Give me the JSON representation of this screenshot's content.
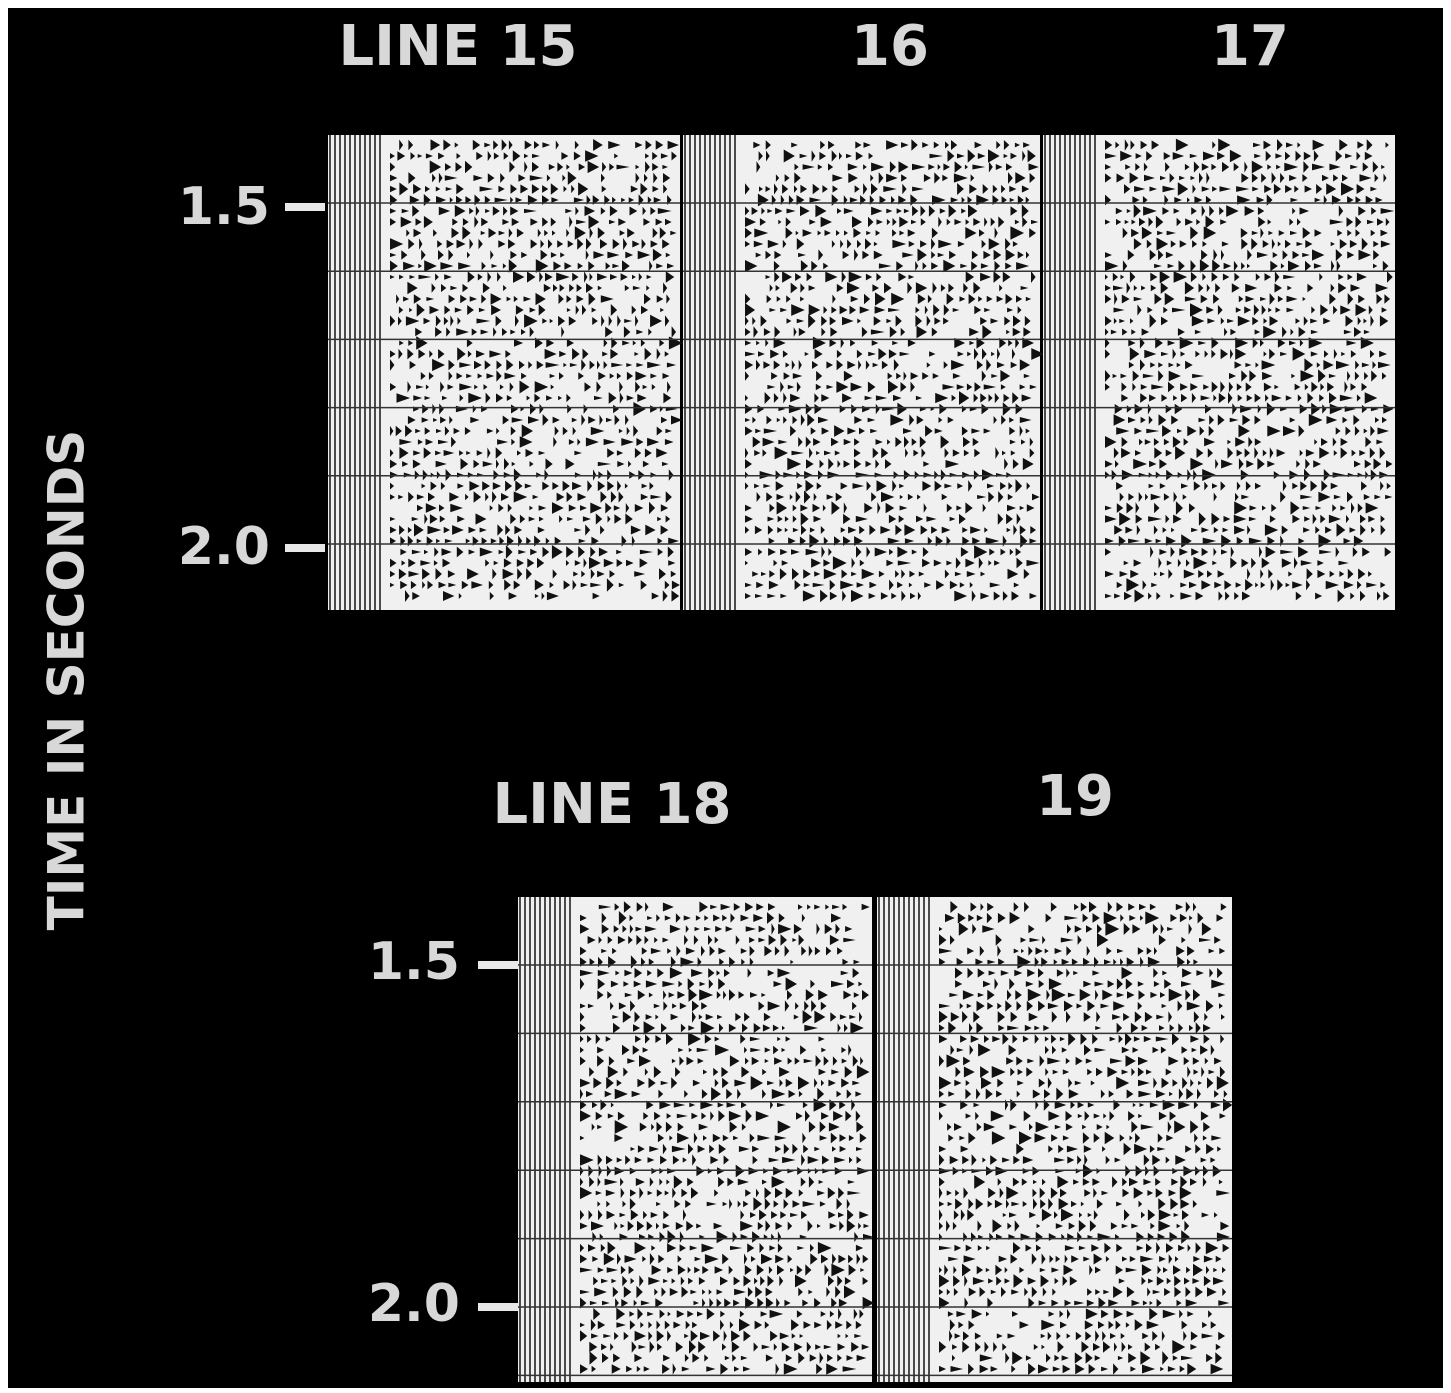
{
  "figure": {
    "axis_label": "TIME IN SECONDS",
    "top": {
      "labels": [
        "LINE 15",
        "16",
        "17"
      ],
      "ticks": [
        "1.5",
        "2.0"
      ]
    },
    "bottom": {
      "labels": [
        "LINE 18",
        "19"
      ],
      "ticks": [
        "1.5",
        "2.0"
      ]
    }
  }
}
